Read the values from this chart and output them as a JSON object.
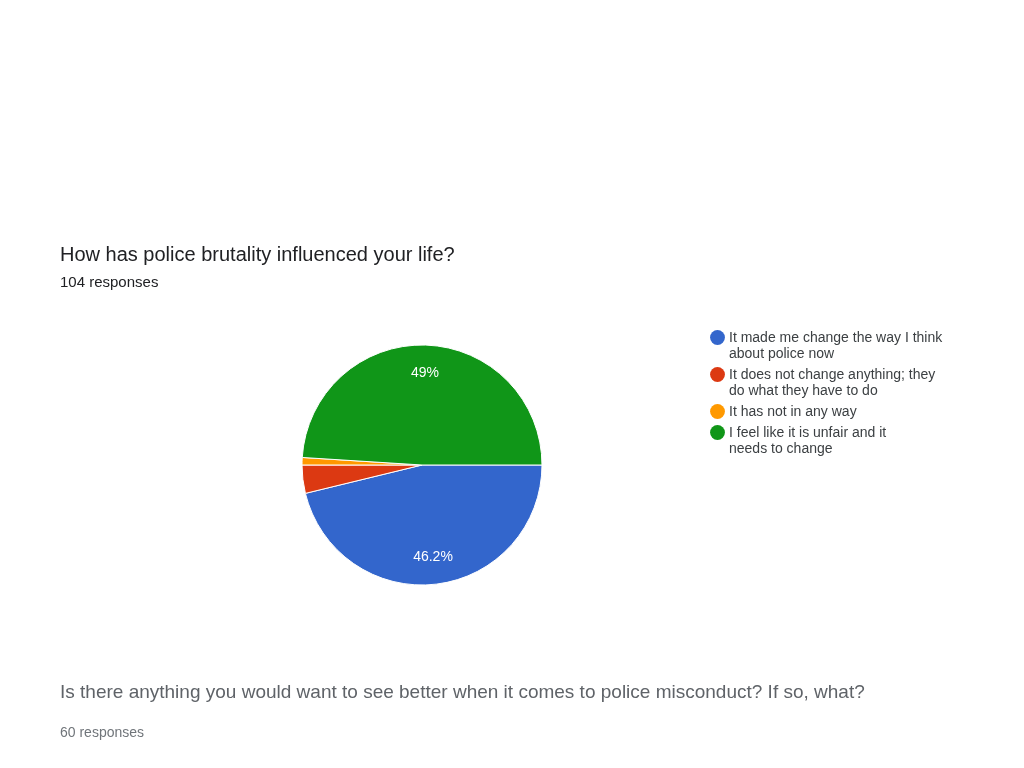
{
  "chart_data": {
    "type": "pie",
    "title": "How has police brutality influenced your life?",
    "subtitle": "104 responses",
    "categories": [
      "It made me change the way I think about police now",
      "It does not change anything; they do what they have to do",
      "It has not in any way",
      "I feel like it is unfair and it needs to change"
    ],
    "values": [
      46.2,
      3.8,
      1,
      49
    ],
    "colors": [
      "#3366cc",
      "#dc3912",
      "#ff9900",
      "#109618"
    ],
    "value_labels": [
      "46.2%",
      null,
      null,
      "49%"
    ],
    "legend": "right",
    "annotations": [
      "Is there anything you would want to see better when it comes to police misconduct? If so, what?",
      "60 responses"
    ]
  }
}
